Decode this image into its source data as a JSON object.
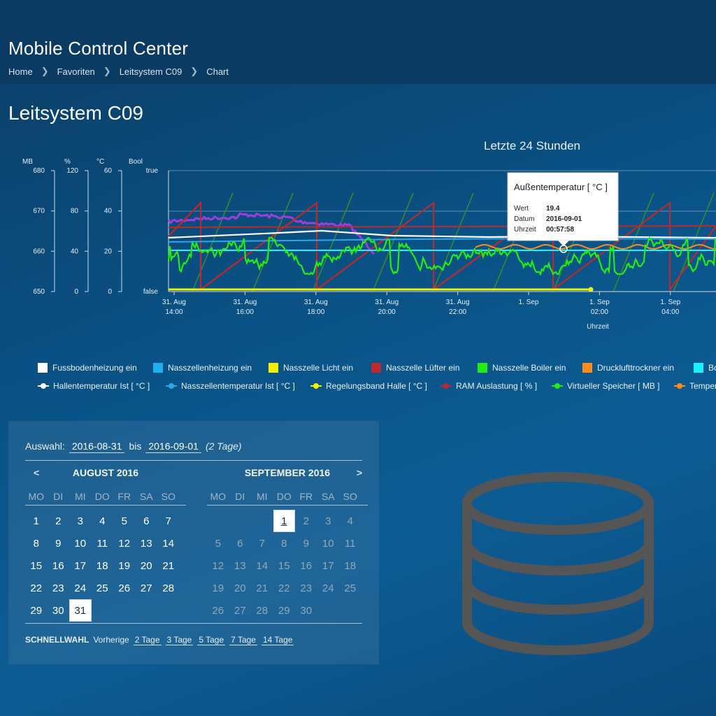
{
  "header": {
    "title": "Mobile Control Center",
    "breadcrumb": [
      "Home",
      "Favoriten",
      "Leitsystem C09",
      "Chart"
    ]
  },
  "page": {
    "title": "Leitsystem C09"
  },
  "chart_data": {
    "type": "line",
    "title": "Letzte 24 Stunden",
    "xlabel": "Uhrzeit",
    "x_ticks": [
      [
        "31. Aug",
        "14:00"
      ],
      [
        "31. Aug",
        "16:00"
      ],
      [
        "31. Aug",
        "18:00"
      ],
      [
        "31. Aug",
        "20:00"
      ],
      [
        "31. Aug",
        "22:00"
      ],
      [
        "1. Sep",
        ""
      ],
      [
        "1. Sep",
        "02:00"
      ],
      [
        "1. Sep",
        "04:00"
      ]
    ],
    "y_axes": [
      {
        "unit": "MB",
        "ticks": [
          "680",
          "670",
          "660",
          "650"
        ],
        "range": [
          650,
          680
        ]
      },
      {
        "unit": "%",
        "ticks": [
          "120",
          "80",
          "40",
          "0"
        ],
        "range": [
          0,
          120
        ]
      },
      {
        "unit": "°C",
        "ticks": [
          "60",
          "40",
          "20",
          "0"
        ],
        "range": [
          0,
          60
        ]
      },
      {
        "unit": "Bool",
        "ticks": [
          "true",
          "false"
        ]
      }
    ],
    "series": [
      {
        "name": "Fussbodenheizung ein",
        "color": "#ffffff",
        "kind": "bool"
      },
      {
        "name": "Nasszellenheizung ein",
        "color": "#1fb0f0",
        "kind": "bool"
      },
      {
        "name": "Nasszelle Licht ein",
        "color": "#f2f200",
        "kind": "bool"
      },
      {
        "name": "Nasszelle Lüfter ein",
        "color": "#c0282c",
        "kind": "bool"
      },
      {
        "name": "Nasszelle Boiler ein",
        "color": "#22ee11",
        "kind": "bool"
      },
      {
        "name": "Drucklufttrockner ein",
        "color": "#ff8c1a",
        "kind": "bool"
      },
      {
        "name": "Bo",
        "color": "#19f2ff",
        "kind": "bool"
      },
      {
        "name": "Hallentemperatur Ist [ °C ]",
        "color": "#ffffff",
        "kind": "line",
        "approx": 24.5
      },
      {
        "name": "Nasszellentemperatur Ist [ °C ]",
        "color": "#2aa8ea",
        "kind": "line",
        "approx": 23
      },
      {
        "name": "Regelungsband Halle [ °C ]",
        "color": "#f2f200",
        "kind": "line",
        "approx": 0.5
      },
      {
        "name": "RAM Auslastung [ % ]",
        "color": "#c0282c",
        "kind": "sawtooth",
        "range": [
          0,
          90
        ]
      },
      {
        "name": "Virtueller Speicher [ MB ]",
        "color": "#22ee11",
        "kind": "noisy",
        "approx": 659
      },
      {
        "name": "Temper",
        "color": "#ff8c1a",
        "kind": "wavy",
        "approx": 20.5
      }
    ],
    "tooltip": {
      "title": "Außentemperatur [ °C ]",
      "rows": [
        {
          "label": "Wert",
          "value": "19.4"
        },
        {
          "label": "Datum",
          "value": "2016-09-01"
        },
        {
          "label": "Uhrzeit",
          "value": "00:57:58"
        }
      ]
    }
  },
  "selection": {
    "label": "Auswahl:",
    "from": "2016-08-31",
    "to_label": "bis",
    "to": "2016-09-01",
    "days_note": "(2 Tage)"
  },
  "calendar": {
    "prev": "<",
    "next": ">",
    "weekdays": [
      "MO",
      "DI",
      "MI",
      "DO",
      "FR",
      "SA",
      "SO"
    ],
    "months": [
      {
        "title": "AUGUST 2016",
        "offset": 0,
        "days": [
          "1",
          "2",
          "3",
          "4",
          "5",
          "6",
          "7",
          "8",
          "9",
          "10",
          "11",
          "12",
          "13",
          "14",
          "15",
          "16",
          "17",
          "18",
          "19",
          "20",
          "21",
          "22",
          "23",
          "24",
          "25",
          "26",
          "27",
          "28",
          "29",
          "30",
          "31"
        ],
        "selected": "31"
      },
      {
        "title": "SEPTEMBER 2016",
        "offset": 3,
        "days": [
          "1",
          "2",
          "3",
          "4",
          "5",
          "6",
          "7",
          "8",
          "9",
          "10",
          "11",
          "12",
          "13",
          "14",
          "15",
          "16",
          "17",
          "18",
          "19",
          "20",
          "21",
          "22",
          "23",
          "24",
          "25",
          "26",
          "27",
          "28",
          "29",
          "30"
        ],
        "selected": "1"
      }
    ]
  },
  "quick": {
    "title": "SCHNELLWAHL",
    "prev_label": "Vorherige",
    "links": [
      "2 Tage",
      "3 Tage",
      "5 Tage",
      "7 Tage",
      "14 Tage"
    ]
  },
  "icons": {
    "database": "database-icon"
  }
}
